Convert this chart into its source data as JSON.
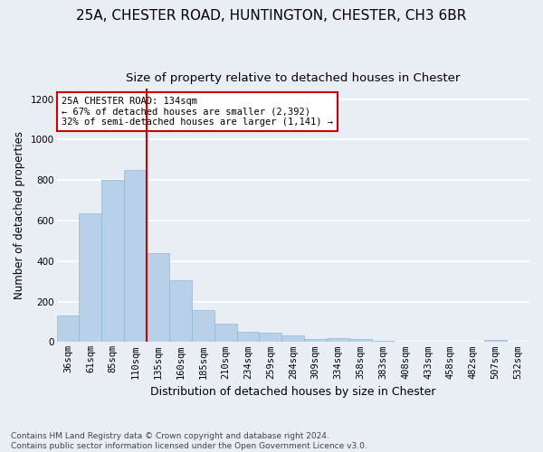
{
  "title1": "25A, CHESTER ROAD, HUNTINGTON, CHESTER, CH3 6BR",
  "title2": "Size of property relative to detached houses in Chester",
  "xlabel": "Distribution of detached houses by size in Chester",
  "ylabel": "Number of detached properties",
  "categories": [
    "36sqm",
    "61sqm",
    "85sqm",
    "110sqm",
    "135sqm",
    "160sqm",
    "185sqm",
    "210sqm",
    "234sqm",
    "259sqm",
    "284sqm",
    "309sqm",
    "334sqm",
    "358sqm",
    "383sqm",
    "408sqm",
    "433sqm",
    "458sqm",
    "482sqm",
    "507sqm",
    "532sqm"
  ],
  "values": [
    130,
    635,
    800,
    850,
    440,
    305,
    158,
    93,
    50,
    47,
    35,
    15,
    18,
    17,
    8,
    3,
    3,
    2,
    2,
    10,
    0
  ],
  "bar_color": "#b8d0e8",
  "bar_edgecolor": "#90b8d8",
  "vline_x_index": 4,
  "vline_color": "#cc0000",
  "annotation_text": "25A CHESTER ROAD: 134sqm\n← 67% of detached houses are smaller (2,392)\n32% of semi-detached houses are larger (1,141) →",
  "annotation_box_color": "#ffffff",
  "annotation_box_edgecolor": "#cc0000",
  "ylim": [
    0,
    1250
  ],
  "yticks": [
    0,
    200,
    400,
    600,
    800,
    1000,
    1200
  ],
  "footer_text": "Contains HM Land Registry data © Crown copyright and database right 2024.\nContains public sector information licensed under the Open Government Licence v3.0.",
  "bg_color": "#e8eef4",
  "plot_bg_color": "#e8eef4",
  "grid_color": "#ffffff",
  "title1_fontsize": 11,
  "title2_fontsize": 9.5,
  "xlabel_fontsize": 9,
  "ylabel_fontsize": 8.5,
  "tick_fontsize": 7.5,
  "footer_fontsize": 6.5
}
